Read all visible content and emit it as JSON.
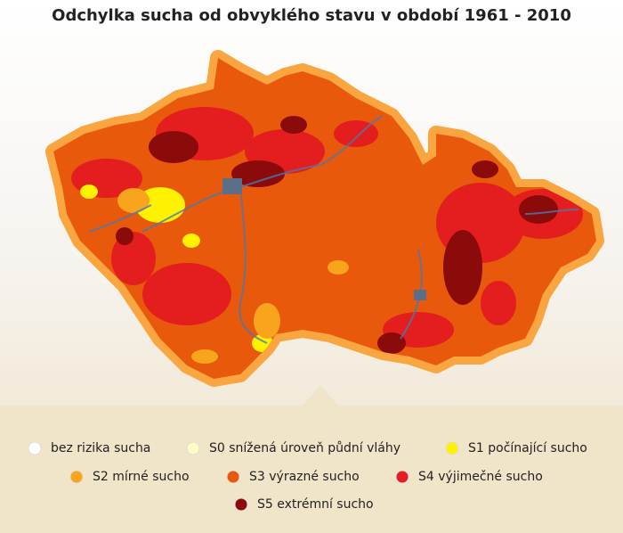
{
  "title": "Odchylka sucha od obvyklého stavu v období 1961 - 2010",
  "legend": [
    {
      "label": "bez rizika sucha",
      "color": "#ffffff"
    },
    {
      "label": "S0 snížená úroveň půdní vláhy",
      "color": "#fffcc0"
    },
    {
      "label": "S1 počínající sucho",
      "color": "#fff200"
    },
    {
      "label": "S2 mírné sucho",
      "color": "#f8a41c"
    },
    {
      "label": "S3 výrazné sucho",
      "color": "#e8590c"
    },
    {
      "label": "S4 výjimečné sucho",
      "color": "#e41e1e"
    },
    {
      "label": "S5 extrémní sucho",
      "color": "#8b0a0a"
    }
  ]
}
